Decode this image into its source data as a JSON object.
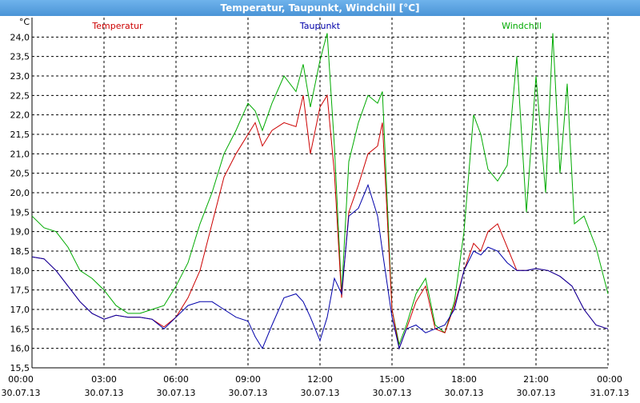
{
  "window": {
    "title": "Temperatur, Taupunkt, Windchill [°C]"
  },
  "chart_data": {
    "type": "line",
    "title": "Temperatur, Taupunkt, Windchill [°C]",
    "ylabel": "°C",
    "ylim": [
      15.5,
      24.5
    ],
    "xlim": [
      0,
      24
    ],
    "grid": true,
    "legend_placement": "top",
    "x_ticks": [
      {
        "x": 0,
        "time": "00:00",
        "date": "30.07.13"
      },
      {
        "x": 3,
        "time": "03:00",
        "date": "30.07.13"
      },
      {
        "x": 6,
        "time": "06:00",
        "date": "30.07.13"
      },
      {
        "x": 9,
        "time": "09:00",
        "date": "30.07.13"
      },
      {
        "x": 12,
        "time": "12:00",
        "date": "30.07.13"
      },
      {
        "x": 15,
        "time": "15:00",
        "date": "30.07.13"
      },
      {
        "x": 18,
        "time": "18:00",
        "date": "30.07.13"
      },
      {
        "x": 21,
        "time": "21:00",
        "date": "30.07.13"
      },
      {
        "x": 24,
        "time": "00:00",
        "date": "31.07.13"
      }
    ],
    "y_ticks": [
      "15,5",
      "16,0",
      "16,5",
      "17,0",
      "17,5",
      "18,0",
      "18,5",
      "19,0",
      "19,5",
      "20,0",
      "20,5",
      "21,0",
      "21,5",
      "22,0",
      "22,5",
      "23,0",
      "23,5",
      "24,0"
    ],
    "y_tick_values": [
      15.5,
      16.0,
      16.5,
      17.0,
      17.5,
      18.0,
      18.5,
      19.0,
      19.5,
      20.0,
      20.5,
      21.0,
      21.5,
      22.0,
      22.5,
      23.0,
      23.5,
      24.0
    ],
    "series": [
      {
        "name": "Temperatur",
        "color": "#cc0000",
        "points": [
          [
            0,
            18.35
          ],
          [
            0.5,
            18.3
          ],
          [
            1,
            18.0
          ],
          [
            1.5,
            17.6
          ],
          [
            2,
            17.2
          ],
          [
            2.5,
            16.9
          ],
          [
            3,
            16.75
          ],
          [
            3.5,
            16.85
          ],
          [
            4,
            16.8
          ],
          [
            4.5,
            16.8
          ],
          [
            5,
            16.75
          ],
          [
            5.5,
            16.55
          ],
          [
            6,
            16.8
          ],
          [
            6.5,
            17.3
          ],
          [
            7,
            18.0
          ],
          [
            7.5,
            19.2
          ],
          [
            8,
            20.4
          ],
          [
            8.5,
            21.0
          ],
          [
            9,
            21.5
          ],
          [
            9.3,
            21.8
          ],
          [
            9.6,
            21.2
          ],
          [
            10,
            21.6
          ],
          [
            10.5,
            21.8
          ],
          [
            11,
            21.7
          ],
          [
            11.3,
            22.5
          ],
          [
            11.6,
            21.0
          ],
          [
            12,
            22.2
          ],
          [
            12.3,
            22.5
          ],
          [
            12.6,
            20.5
          ],
          [
            12.9,
            17.3
          ],
          [
            13.2,
            19.5
          ],
          [
            13.6,
            20.2
          ],
          [
            14,
            21.0
          ],
          [
            14.4,
            21.2
          ],
          [
            14.6,
            21.8
          ],
          [
            15,
            17.0
          ],
          [
            15.3,
            16.0
          ],
          [
            15.6,
            16.5
          ],
          [
            16,
            17.2
          ],
          [
            16.4,
            17.6
          ],
          [
            16.8,
            16.5
          ],
          [
            17.2,
            16.4
          ],
          [
            17.6,
            17.1
          ],
          [
            18,
            18.0
          ],
          [
            18.4,
            18.7
          ],
          [
            18.7,
            18.5
          ],
          [
            19,
            19.0
          ],
          [
            19.4,
            19.2
          ],
          [
            19.8,
            18.6
          ],
          [
            20.2,
            18.0
          ],
          [
            20.6,
            18.0
          ],
          [
            21,
            18.05
          ],
          [
            21.5,
            18.0
          ],
          [
            22,
            17.85
          ],
          [
            22.5,
            17.6
          ],
          [
            23,
            17.0
          ],
          [
            23.5,
            16.6
          ],
          [
            24,
            16.5
          ]
        ]
      },
      {
        "name": "Taupunkt",
        "color": "#0000aa",
        "points": [
          [
            0,
            18.35
          ],
          [
            0.5,
            18.3
          ],
          [
            1,
            18.0
          ],
          [
            1.5,
            17.6
          ],
          [
            2,
            17.2
          ],
          [
            2.5,
            16.9
          ],
          [
            3,
            16.75
          ],
          [
            3.5,
            16.85
          ],
          [
            4,
            16.8
          ],
          [
            4.5,
            16.8
          ],
          [
            5,
            16.75
          ],
          [
            5.5,
            16.5
          ],
          [
            6,
            16.8
          ],
          [
            6.5,
            17.1
          ],
          [
            7,
            17.2
          ],
          [
            7.5,
            17.2
          ],
          [
            8,
            17.0
          ],
          [
            8.5,
            16.8
          ],
          [
            9,
            16.7
          ],
          [
            9.3,
            16.3
          ],
          [
            9.6,
            16.0
          ],
          [
            10,
            16.6
          ],
          [
            10.5,
            17.3
          ],
          [
            11,
            17.4
          ],
          [
            11.3,
            17.2
          ],
          [
            11.6,
            16.8
          ],
          [
            12,
            16.2
          ],
          [
            12.3,
            16.8
          ],
          [
            12.6,
            17.8
          ],
          [
            12.9,
            17.4
          ],
          [
            13.2,
            19.4
          ],
          [
            13.6,
            19.6
          ],
          [
            14,
            20.2
          ],
          [
            14.4,
            19.4
          ],
          [
            14.6,
            18.5
          ],
          [
            15,
            16.8
          ],
          [
            15.3,
            16.0
          ],
          [
            15.6,
            16.5
          ],
          [
            16,
            16.6
          ],
          [
            16.4,
            16.4
          ],
          [
            16.8,
            16.5
          ],
          [
            17.2,
            16.6
          ],
          [
            17.6,
            17.0
          ],
          [
            18,
            18.0
          ],
          [
            18.4,
            18.5
          ],
          [
            18.7,
            18.4
          ],
          [
            19,
            18.6
          ],
          [
            19.4,
            18.5
          ],
          [
            19.8,
            18.2
          ],
          [
            20.2,
            18.0
          ],
          [
            20.6,
            18.0
          ],
          [
            21,
            18.05
          ],
          [
            21.5,
            18.0
          ],
          [
            22,
            17.85
          ],
          [
            22.5,
            17.6
          ],
          [
            23,
            17.0
          ],
          [
            23.5,
            16.6
          ],
          [
            24,
            16.5
          ]
        ]
      },
      {
        "name": "Windchill",
        "color": "#00aa00",
        "points": [
          [
            0,
            19.4
          ],
          [
            0.5,
            19.1
          ],
          [
            1,
            19.0
          ],
          [
            1.5,
            18.6
          ],
          [
            2,
            18.0
          ],
          [
            2.5,
            17.8
          ],
          [
            3,
            17.5
          ],
          [
            3.5,
            17.1
          ],
          [
            4,
            16.9
          ],
          [
            4.5,
            16.9
          ],
          [
            5,
            17.0
          ],
          [
            5.5,
            17.1
          ],
          [
            6,
            17.6
          ],
          [
            6.5,
            18.2
          ],
          [
            7,
            19.2
          ],
          [
            7.5,
            20.0
          ],
          [
            8,
            21.0
          ],
          [
            8.5,
            21.6
          ],
          [
            9,
            22.3
          ],
          [
            9.3,
            22.1
          ],
          [
            9.6,
            21.6
          ],
          [
            10,
            22.3
          ],
          [
            10.5,
            23.0
          ],
          [
            11,
            22.6
          ],
          [
            11.3,
            23.3
          ],
          [
            11.6,
            22.2
          ],
          [
            12,
            23.4
          ],
          [
            12.3,
            24.1
          ],
          [
            12.6,
            21.2
          ],
          [
            12.9,
            17.4
          ],
          [
            13.2,
            20.8
          ],
          [
            13.6,
            21.8
          ],
          [
            14,
            22.5
          ],
          [
            14.4,
            22.3
          ],
          [
            14.6,
            22.6
          ],
          [
            15,
            17.0
          ],
          [
            15.3,
            16.1
          ],
          [
            15.6,
            16.6
          ],
          [
            16,
            17.4
          ],
          [
            16.4,
            17.8
          ],
          [
            16.8,
            16.6
          ],
          [
            17.2,
            16.4
          ],
          [
            17.6,
            17.2
          ],
          [
            18,
            19.0
          ],
          [
            18.4,
            22.0
          ],
          [
            18.7,
            21.5
          ],
          [
            19,
            20.6
          ],
          [
            19.4,
            20.3
          ],
          [
            19.8,
            20.7
          ],
          [
            20.2,
            23.5
          ],
          [
            20.6,
            19.5
          ],
          [
            21,
            23.0
          ],
          [
            21.4,
            20.0
          ],
          [
            21.7,
            24.1
          ],
          [
            22,
            20.5
          ],
          [
            22.3,
            22.8
          ],
          [
            22.6,
            19.2
          ],
          [
            23,
            19.4
          ],
          [
            23.5,
            18.6
          ],
          [
            24,
            17.4
          ]
        ]
      }
    ]
  }
}
